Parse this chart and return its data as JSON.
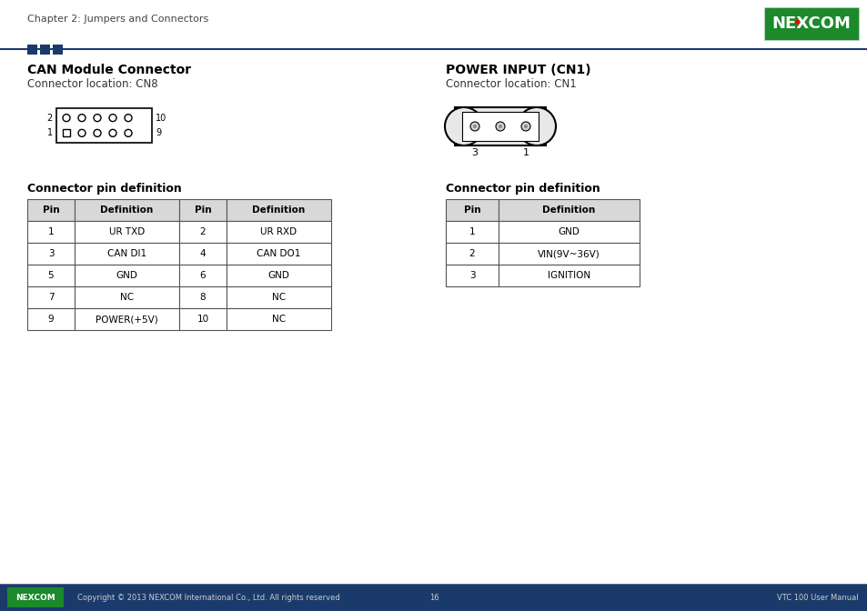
{
  "page_header_text": "Chapter 2: Jumpers and Connectors",
  "header_line_color": "#1a3a6b",
  "header_squares_colors": [
    "#1a3a6b",
    "#1a3a6b",
    "#1a3a6b"
  ],
  "nexcom_logo_bg": "#1a8a2a",
  "nexcom_logo_text": "NEXCOM",
  "section1_title": "CAN Module Connector",
  "section1_subtitle": "Connector location: CN8",
  "section2_title": "POWER INPUT (CN1)",
  "section2_subtitle": "Connector location: CN1",
  "table1_title": "Connector pin definition",
  "table1_headers": [
    "Pin",
    "Definition",
    "Pin",
    "Definition"
  ],
  "table1_rows": [
    [
      "1",
      "UR TXD",
      "2",
      "UR RXD"
    ],
    [
      "3",
      "CAN DI1",
      "4",
      "CAN DO1"
    ],
    [
      "5",
      "GND",
      "6",
      "GND"
    ],
    [
      "7",
      "NC",
      "8",
      "NC"
    ],
    [
      "9",
      "POWER(+5V)",
      "10",
      "NC"
    ]
  ],
  "table2_title": "Connector pin definition",
  "table2_headers": [
    "Pin",
    "Definition"
  ],
  "table2_rows": [
    [
      "1",
      "GND"
    ],
    [
      "2",
      "VIN(9V~36V)"
    ],
    [
      "3",
      "IGNITION"
    ]
  ],
  "footer_bar_color": "#1a3a6b",
  "footer_text_left": "Copyright © 2013 NEXCOM International Co., Ltd. All rights reserved",
  "footer_text_center": "16",
  "footer_text_right": "VTC 100 User Manual",
  "table_header_bg": "#d0d0d0",
  "table_border_color": "#555555",
  "text_color": "#000000",
  "white": "#ffffff",
  "bg_color": "#ffffff"
}
